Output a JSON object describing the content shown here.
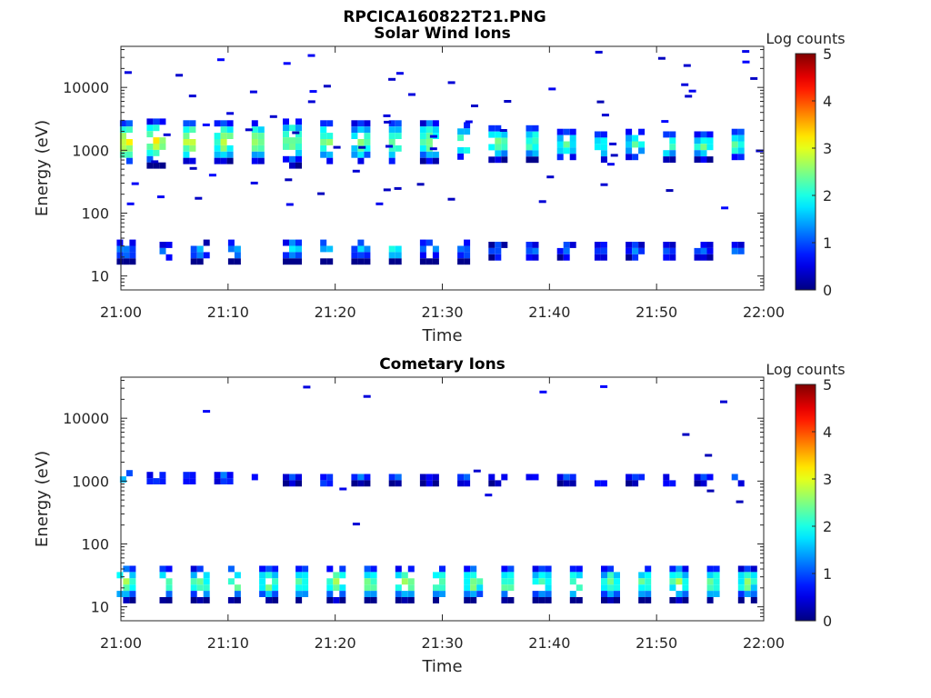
{
  "figure": {
    "title": "RPCICA160822T21.PNG"
  },
  "chart_data": [
    {
      "type": "heatmap",
      "title": "Solar Wind Ions",
      "xlabel": "Time",
      "ylabel": "Energy (eV)",
      "x_ticks": [
        "21:00",
        "21:10",
        "21:20",
        "21:30",
        "21:40",
        "21:50",
        "22:00"
      ],
      "xlim_minutes": [
        0,
        60
      ],
      "y_ticks": [
        "10",
        "100",
        "1000",
        "10000"
      ],
      "ylim": [
        6,
        45000
      ],
      "y_scale": "log",
      "colorbar": {
        "label": "Log counts",
        "ticks": [
          "0",
          "1",
          "2",
          "3",
          "4",
          "5"
        ],
        "range": [
          0,
          5
        ],
        "colormap": "jet"
      },
      "scan_period_minutes": 3.2,
      "columns": [
        {
          "t": 0.5,
          "lo": 600,
          "hi": 3000,
          "peak": 3.2
        },
        {
          "t": 3.3,
          "lo": 600,
          "hi": 3200,
          "peak": 3.0
        },
        {
          "t": 6.4,
          "lo": 650,
          "hi": 3000,
          "peak": 3.0
        },
        {
          "t": 9.6,
          "lo": 650,
          "hi": 3000,
          "peak": 2.8
        },
        {
          "t": 12.8,
          "lo": 650,
          "hi": 3000,
          "peak": 2.7
        },
        {
          "t": 16.0,
          "lo": 600,
          "hi": 3200,
          "peak": 2.6
        },
        {
          "t": 19.2,
          "lo": 650,
          "hi": 3000,
          "peak": 2.6
        },
        {
          "t": 22.4,
          "lo": 650,
          "hi": 3000,
          "peak": 2.5
        },
        {
          "t": 25.6,
          "lo": 600,
          "hi": 3000,
          "peak": 2.7
        },
        {
          "t": 28.8,
          "lo": 650,
          "hi": 3000,
          "peak": 2.7
        },
        {
          "t": 32.0,
          "lo": 700,
          "hi": 2800,
          "peak": 2.5
        },
        {
          "t": 35.2,
          "lo": 700,
          "hi": 2500,
          "peak": 2.5
        },
        {
          "t": 38.4,
          "lo": 700,
          "hi": 2500,
          "peak": 2.4
        },
        {
          "t": 41.6,
          "lo": 700,
          "hi": 2200,
          "peak": 2.3
        },
        {
          "t": 44.8,
          "lo": 700,
          "hi": 2000,
          "peak": 2.3
        },
        {
          "t": 48.0,
          "lo": 700,
          "hi": 2200,
          "peak": 2.3
        },
        {
          "t": 51.2,
          "lo": 700,
          "hi": 2000,
          "peak": 2.3
        },
        {
          "t": 54.4,
          "lo": 700,
          "hi": 2000,
          "peak": 2.4
        },
        {
          "t": 57.6,
          "lo": 700,
          "hi": 2200,
          "peak": 2.4
        },
        {
          "t": 0.5,
          "lo": 18,
          "hi": 38,
          "peak": 1.5
        },
        {
          "t": 4.2,
          "lo": 18,
          "hi": 35,
          "peak": 1.3
        },
        {
          "t": 7.4,
          "lo": 18,
          "hi": 38,
          "peak": 1.5
        },
        {
          "t": 10.6,
          "lo": 18,
          "hi": 38,
          "peak": 1.6
        },
        {
          "t": 16.0,
          "lo": 18,
          "hi": 38,
          "peak": 1.9
        },
        {
          "t": 19.2,
          "lo": 18,
          "hi": 38,
          "peak": 1.7
        },
        {
          "t": 22.4,
          "lo": 18,
          "hi": 38,
          "peak": 1.5
        },
        {
          "t": 25.6,
          "lo": 18,
          "hi": 38,
          "peak": 2.0
        },
        {
          "t": 28.8,
          "lo": 18,
          "hi": 38,
          "peak": 1.7
        },
        {
          "t": 32.0,
          "lo": 18,
          "hi": 38,
          "peak": 1.5
        },
        {
          "t": 35.2,
          "lo": 18,
          "hi": 35,
          "peak": 1.2
        },
        {
          "t": 38.4,
          "lo": 18,
          "hi": 35,
          "peak": 1.3
        },
        {
          "t": 41.6,
          "lo": 18,
          "hi": 35,
          "peak": 1.3
        },
        {
          "t": 44.8,
          "lo": 18,
          "hi": 35,
          "peak": 1.2
        },
        {
          "t": 48.0,
          "lo": 18,
          "hi": 35,
          "peak": 1.3
        },
        {
          "t": 51.2,
          "lo": 18,
          "hi": 35,
          "peak": 1.2
        },
        {
          "t": 54.4,
          "lo": 18,
          "hi": 35,
          "peak": 1.2
        },
        {
          "t": 57.6,
          "lo": 18,
          "hi": 35,
          "peak": 1.3
        }
      ]
    },
    {
      "type": "heatmap",
      "title": "Cometary Ions",
      "xlabel": "Time",
      "ylabel": "Energy (eV)",
      "x_ticks": [
        "21:00",
        "21:10",
        "21:20",
        "21:30",
        "21:40",
        "21:50",
        "22:00"
      ],
      "xlim_minutes": [
        0,
        60
      ],
      "y_ticks": [
        "10",
        "100",
        "1000",
        "10000"
      ],
      "ylim": [
        6,
        45000
      ],
      "y_scale": "log",
      "colorbar": {
        "label": "Log counts",
        "ticks": [
          "0",
          "1",
          "2",
          "3",
          "4",
          "5"
        ],
        "range": [
          0,
          5
        ],
        "colormap": "jet"
      },
      "scan_period_minutes": 3.2,
      "columns": [
        {
          "t": 0.5,
          "lo": 900,
          "hi": 1500,
          "peak": 1.8
        },
        {
          "t": 3.3,
          "lo": 900,
          "hi": 1400,
          "peak": 1.4
        },
        {
          "t": 6.4,
          "lo": 900,
          "hi": 1400,
          "peak": 1.4
        },
        {
          "t": 9.6,
          "lo": 900,
          "hi": 1400,
          "peak": 1.5
        },
        {
          "t": 12.8,
          "lo": 1000,
          "hi": 1300,
          "peak": 1.0
        },
        {
          "t": 16.0,
          "lo": 900,
          "hi": 1300,
          "peak": 1.2
        },
        {
          "t": 19.2,
          "lo": 800,
          "hi": 1300,
          "peak": 1.2
        },
        {
          "t": 22.4,
          "lo": 900,
          "hi": 1300,
          "peak": 1.2
        },
        {
          "t": 25.6,
          "lo": 900,
          "hi": 1300,
          "peak": 1.3
        },
        {
          "t": 28.8,
          "lo": 900,
          "hi": 1300,
          "peak": 1.0
        },
        {
          "t": 32.0,
          "lo": 900,
          "hi": 1300,
          "peak": 1.3
        },
        {
          "t": 35.2,
          "lo": 900,
          "hi": 1300,
          "peak": 1.3
        },
        {
          "t": 38.4,
          "lo": 900,
          "hi": 1300,
          "peak": 1.1
        },
        {
          "t": 41.6,
          "lo": 900,
          "hi": 1300,
          "peak": 1.2
        },
        {
          "t": 44.8,
          "lo": 800,
          "hi": 1300,
          "peak": 1.1
        },
        {
          "t": 48.0,
          "lo": 900,
          "hi": 1300,
          "peak": 1.2
        },
        {
          "t": 51.2,
          "lo": 800,
          "hi": 1300,
          "peak": 1.2
        },
        {
          "t": 54.4,
          "lo": 900,
          "hi": 1300,
          "peak": 1.3
        },
        {
          "t": 57.6,
          "lo": 900,
          "hi": 1300,
          "peak": 1.3
        },
        {
          "t": 0.5,
          "lo": 13,
          "hi": 45,
          "peak": 2.7
        },
        {
          "t": 4.2,
          "lo": 13,
          "hi": 45,
          "peak": 2.4
        },
        {
          "t": 7.4,
          "lo": 13,
          "hi": 45,
          "peak": 2.5
        },
        {
          "t": 10.6,
          "lo": 13,
          "hi": 45,
          "peak": 2.6
        },
        {
          "t": 13.8,
          "lo": 13,
          "hi": 45,
          "peak": 2.5
        },
        {
          "t": 16.9,
          "lo": 13,
          "hi": 45,
          "peak": 2.4
        },
        {
          "t": 20.1,
          "lo": 13,
          "hi": 45,
          "peak": 2.6
        },
        {
          "t": 23.3,
          "lo": 13,
          "hi": 45,
          "peak": 2.6
        },
        {
          "t": 26.5,
          "lo": 13,
          "hi": 45,
          "peak": 2.8
        },
        {
          "t": 29.7,
          "lo": 13,
          "hi": 45,
          "peak": 2.6
        },
        {
          "t": 32.9,
          "lo": 13,
          "hi": 45,
          "peak": 2.5
        },
        {
          "t": 36.1,
          "lo": 13,
          "hi": 45,
          "peak": 2.5
        },
        {
          "t": 39.3,
          "lo": 13,
          "hi": 45,
          "peak": 2.4
        },
        {
          "t": 42.5,
          "lo": 13,
          "hi": 45,
          "peak": 2.5
        },
        {
          "t": 45.7,
          "lo": 13,
          "hi": 45,
          "peak": 2.4
        },
        {
          "t": 48.9,
          "lo": 13,
          "hi": 45,
          "peak": 2.5
        },
        {
          "t": 52.1,
          "lo": 13,
          "hi": 45,
          "peak": 2.6
        },
        {
          "t": 55.3,
          "lo": 13,
          "hi": 45,
          "peak": 2.5
        },
        {
          "t": 58.5,
          "lo": 13,
          "hi": 45,
          "peak": 2.4
        }
      ]
    }
  ]
}
